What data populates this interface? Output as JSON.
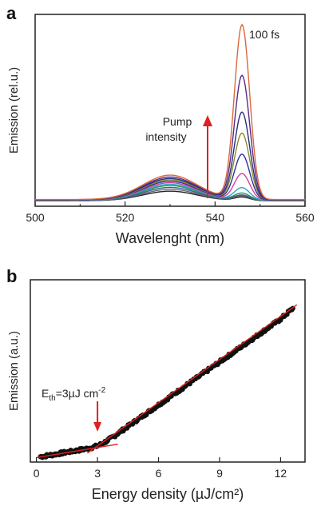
{
  "chart_data": [
    {
      "panel": "a",
      "type": "line",
      "title": "",
      "xlabel": "Wavelenght (nm)",
      "ylabel": "Emission (rel.u.)",
      "xlim": [
        500,
        560
      ],
      "ylim": [
        0,
        1
      ],
      "xticks": [
        500,
        520,
        540,
        560
      ],
      "grid": false,
      "annotations": [
        "100 fs",
        "Pump",
        "intensity"
      ],
      "series": [
        {
          "color": "#222222",
          "peak": 0.02,
          "broad": 0.055
        },
        {
          "color": "#6b6b6b",
          "peak": 0.025,
          "broad": 0.065
        },
        {
          "color": "#3c5a9a",
          "peak": 0.03,
          "broad": 0.075
        },
        {
          "color": "#2e8b57",
          "peak": 0.04,
          "broad": 0.085
        },
        {
          "color": "#27a9c9",
          "peak": 0.07,
          "broad": 0.092
        },
        {
          "color": "#d63f9a",
          "peak": 0.15,
          "broad": 0.1
        },
        {
          "color": "#28329c",
          "peak": 0.26,
          "broad": 0.108
        },
        {
          "color": "#8a8a2e",
          "peak": 0.38,
          "broad": 0.115
        },
        {
          "color": "#2c2c7a",
          "peak": 0.5,
          "broad": 0.122
        },
        {
          "color": "#5a2a8a",
          "peak": 0.71,
          "broad": 0.13
        },
        {
          "color": "#d86a3a",
          "peak": 1.0,
          "broad": 0.14
        }
      ]
    },
    {
      "panel": "b",
      "type": "scatter",
      "title": "",
      "xlabel": "Energy density (µJ/cm²)",
      "ylabel": "Emission (a.u.)",
      "xlim": [
        -0.3,
        13.2
      ],
      "ylim": [
        0,
        1.02
      ],
      "xticks": [
        0,
        3,
        6,
        9,
        12
      ],
      "grid": false,
      "annotation": "Eth=3µJ cm-2",
      "threshold_x": 3,
      "x": [
        0.2,
        1.0,
        2.0,
        2.5,
        3.0,
        3.5,
        4.0,
        5.0,
        6.0,
        7.0,
        8.0,
        9.0,
        10.0,
        11.0,
        12.0,
        12.6
      ],
      "y": [
        0.03,
        0.045,
        0.065,
        0.075,
        0.09,
        0.12,
        0.16,
        0.24,
        0.32,
        0.4,
        0.48,
        0.56,
        0.64,
        0.72,
        0.8,
        0.86
      ],
      "fit_lines": [
        {
          "color": "#e02020",
          "x": [
            0.0,
            4.0
          ],
          "y": [
            0.025,
            0.1
          ]
        },
        {
          "color": "#e02020",
          "x": [
            2.5,
            12.8
          ],
          "y": [
            0.05,
            0.88
          ]
        }
      ]
    }
  ]
}
